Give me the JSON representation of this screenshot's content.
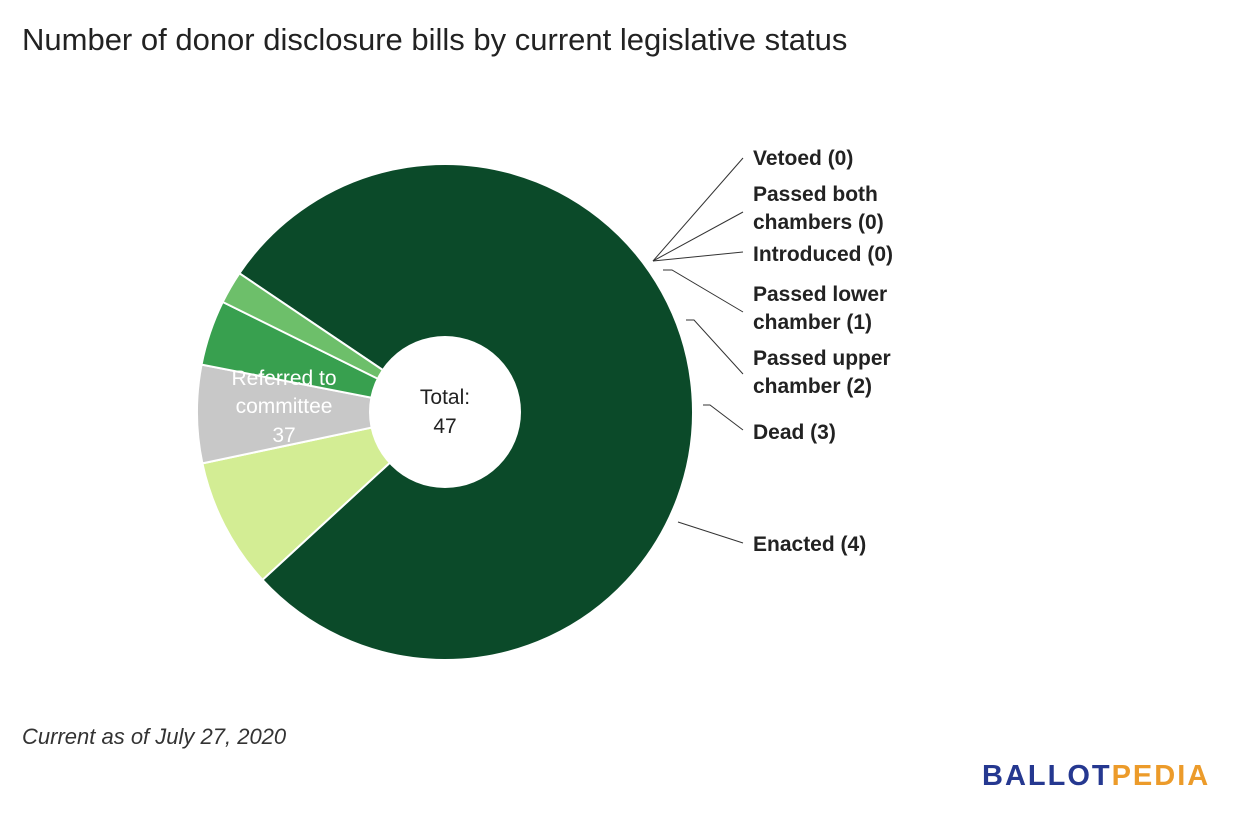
{
  "title": "Number of donor disclosure bills by current legislative status",
  "footnote": "Current as of July 27, 2020",
  "brand": {
    "part1": "BALLOT",
    "part2": "PEDIA",
    "color1": "#253890",
    "color2": "#ec9b2a"
  },
  "chart_data": {
    "type": "pie",
    "donut": true,
    "center_label": "Total:",
    "center_value": "47",
    "slices": [
      {
        "name": "Referred to committee",
        "value": 37,
        "color": "#0b4a29",
        "label_lines": [
          "Referred to",
          "committee"
        ],
        "value_label": "37",
        "label_position": "inside"
      },
      {
        "name": "Enacted",
        "value": 4,
        "color": "#d3ed94",
        "label_lines": [
          "Enacted (4)"
        ],
        "label_position": "outside"
      },
      {
        "name": "Dead",
        "value": 3,
        "color": "#c8c8c8",
        "label_lines": [
          "Dead (3)"
        ],
        "label_position": "outside"
      },
      {
        "name": "Passed upper chamber",
        "value": 2,
        "color": "#38a04f",
        "label_lines": [
          "Passed upper",
          "chamber (2)"
        ],
        "label_position": "outside"
      },
      {
        "name": "Passed lower chamber",
        "value": 1,
        "color": "#6dbf6a",
        "label_lines": [
          "Passed lower",
          "chamber (1)"
        ],
        "label_position": "outside"
      },
      {
        "name": "Introduced",
        "value": 0,
        "color": "#9bd48c",
        "label_lines": [
          "Introduced (0)"
        ],
        "label_position": "outside"
      },
      {
        "name": "Passed both chambers",
        "value": 0,
        "color": "#2f7d40",
        "label_lines": [
          "Passed both",
          "chambers (0)"
        ],
        "label_position": "outside"
      },
      {
        "name": "Vetoed",
        "value": 0,
        "color": "#1f6a35",
        "label_lines": [
          "Vetoed (0)"
        ],
        "label_position": "outside"
      }
    ]
  }
}
